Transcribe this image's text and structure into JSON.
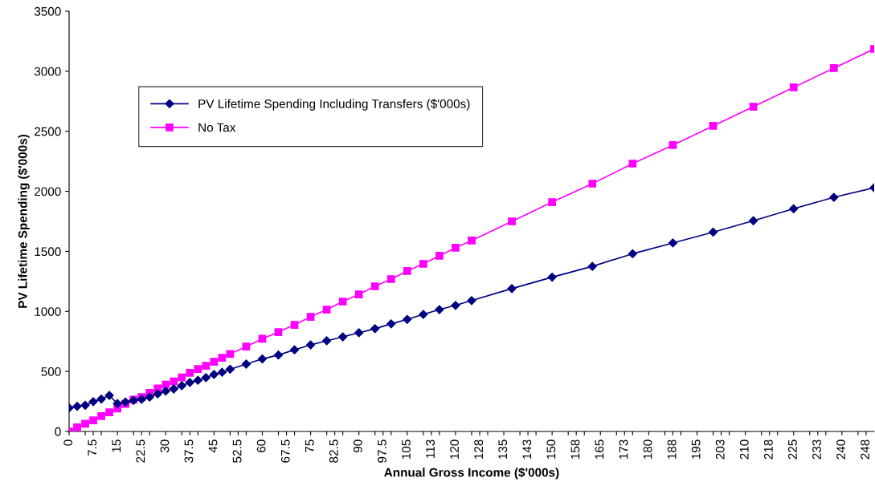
{
  "chart_data": {
    "type": "line",
    "xlabel": "Annual Gross Income ($'000s)",
    "ylabel": "PV Lifetime Spending ($'000s)",
    "x": [
      0,
      2.5,
      5,
      7.5,
      10,
      12.5,
      15,
      17.5,
      20,
      22.5,
      25,
      27.5,
      30,
      32.5,
      35,
      37.5,
      40,
      42.5,
      45,
      47.5,
      50,
      55,
      60,
      65,
      70,
      75,
      80,
      85,
      90,
      95,
      100,
      105,
      110,
      115,
      120,
      125,
      137.5,
      150,
      162.5,
      175,
      187.5,
      200,
      212.5,
      225,
      237.5,
      250
    ],
    "series": [
      {
        "name": "PV Lifetime Spending Including Transfers ($'000s)",
        "color": "#000080",
        "marker": "diamond",
        "values": [
          196,
          209,
          218,
          248,
          270,
          300,
          232,
          245,
          259,
          268,
          286,
          313,
          336,
          354,
          381,
          408,
          426,
          448,
          475,
          493,
          518,
          561,
          604,
          637,
          680,
          721,
          755,
          788,
          822,
          856,
          896,
          933,
          975,
          1015,
          1050,
          1090,
          1190,
          1285,
          1375,
          1480,
          1570,
          1660,
          1755,
          1855,
          1950,
          2030
        ]
      },
      {
        "name": "No Tax",
        "color": "#ff00ff",
        "marker": "square",
        "values": [
          0,
          34,
          65,
          92,
          128,
          160,
          191,
          230,
          264,
          286,
          322,
          358,
          390,
          417,
          450,
          489,
          520,
          547,
          581,
          613,
          646,
          707,
          772,
          828,
          888,
          955,
          1015,
          1082,
          1142,
          1209,
          1269,
          1336,
          1396,
          1463,
          1530,
          1590,
          1750,
          1910,
          2064,
          2231,
          2385,
          2545,
          2705,
          2866,
          3026,
          3186
        ]
      }
    ],
    "xlim": [
      0,
      250
    ],
    "xticks": [
      0,
      {
        "value": 5,
        "label": null
      },
      {
        "value": 7.5,
        "label": "7.5"
      },
      {
        "value": 10,
        "label": null
      },
      15,
      {
        "value": 20,
        "label": null
      },
      {
        "value": 22.5,
        "label": "22.5"
      },
      {
        "value": 25,
        "label": null
      },
      30,
      {
        "value": 35,
        "label": null
      },
      {
        "value": 37.5,
        "label": "37.5"
      },
      {
        "value": 40,
        "label": null
      },
      45,
      {
        "value": 50,
        "label": null
      },
      {
        "value": 52.5,
        "label": "52.5"
      },
      {
        "value": 55,
        "label": null
      },
      60,
      {
        "value": 65,
        "label": null
      },
      {
        "value": 67.5,
        "label": "67.5"
      },
      {
        "value": 70,
        "label": null
      },
      75,
      {
        "value": 80,
        "label": null
      },
      {
        "value": 82.5,
        "label": "82.5"
      },
      {
        "value": 85,
        "label": null
      },
      90,
      {
        "value": 95,
        "label": null
      },
      {
        "value": 97.5,
        "label": "97.5"
      },
      {
        "value": 100,
        "label": null
      },
      105,
      {
        "value": 110,
        "label": null
      },
      {
        "value": 112.5,
        "label": "113"
      },
      {
        "value": 115,
        "label": null
      },
      120,
      {
        "value": 125,
        "label": null
      },
      {
        "value": 127.5,
        "label": "128"
      },
      {
        "value": 130,
        "label": null
      },
      135,
      {
        "value": 140,
        "label": null
      },
      {
        "value": 142.5,
        "label": "143"
      },
      {
        "value": 145,
        "label": null
      },
      150,
      {
        "value": 155,
        "label": null
      },
      {
        "value": 157.5,
        "label": "158"
      },
      {
        "value": 160,
        "label": null
      },
      165,
      {
        "value": 170,
        "label": null
      },
      {
        "value": 172.5,
        "label": "173"
      },
      {
        "value": 175,
        "label": null
      },
      180,
      {
        "value": 185,
        "label": null
      },
      {
        "value": 187.5,
        "label": "188"
      },
      {
        "value": 190,
        "label": null
      },
      195,
      {
        "value": 200,
        "label": null
      },
      {
        "value": 202.5,
        "label": "203"
      },
      {
        "value": 205,
        "label": null
      },
      210,
      {
        "value": 215,
        "label": null
      },
      {
        "value": 217.5,
        "label": "218"
      },
      {
        "value": 220,
        "label": null
      },
      225,
      {
        "value": 230,
        "label": null
      },
      {
        "value": 232.5,
        "label": "233"
      },
      {
        "value": 235,
        "label": null
      },
      240,
      {
        "value": 245,
        "label": null
      },
      {
        "value": 247.5,
        "label": "248"
      }
    ],
    "ylim": [
      0,
      3500
    ],
    "yticks": [
      0,
      500,
      1000,
      1500,
      2000,
      2500,
      3000,
      3500
    ],
    "grid": false,
    "legend": "top left",
    "line_style": "solid"
  }
}
